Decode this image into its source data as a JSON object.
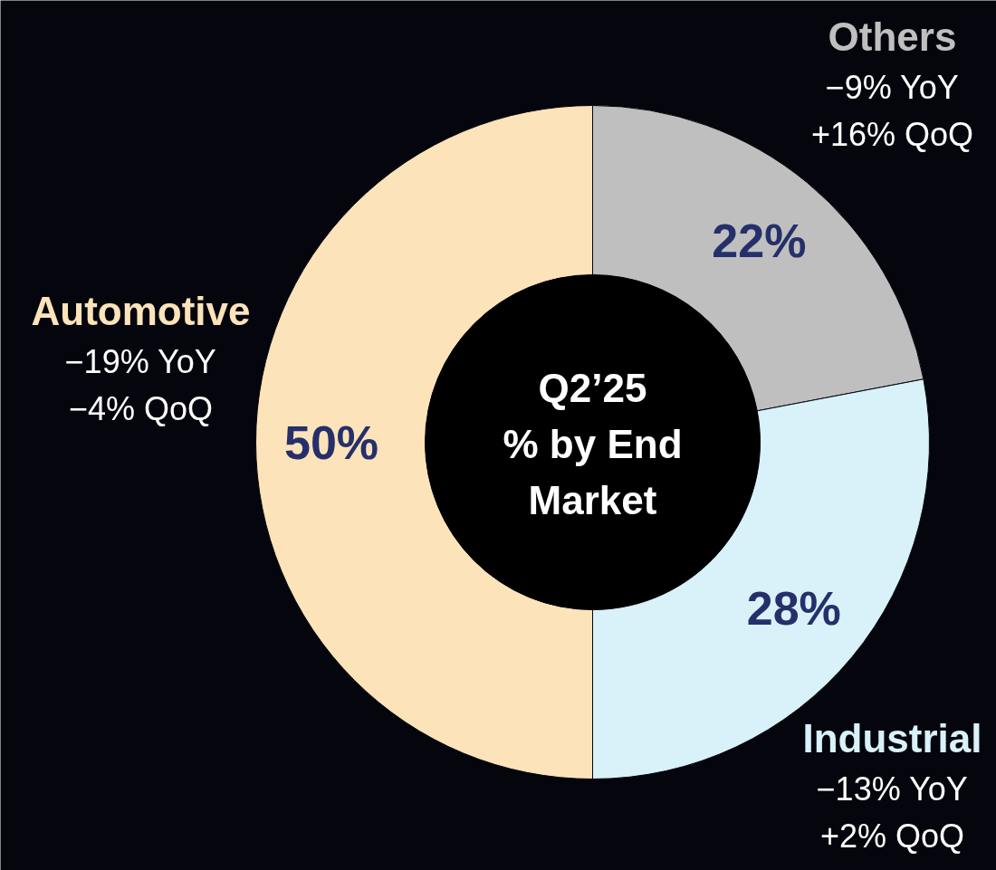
{
  "chart_data": {
    "type": "donut",
    "title": "Q2’25\n% by End\nMarket",
    "categories": [
      "Others",
      "Industrial",
      "Automotive"
    ],
    "values": [
      22,
      28,
      50
    ],
    "colors": [
      "#bfbfbf",
      "#d9f1f9",
      "#fde3b9"
    ],
    "value_labels": [
      "22%",
      "28%",
      "50%"
    ],
    "annotations": [
      "−9% YoY",
      "+16% QoQ",
      "−13% YoY",
      "+2% QoQ",
      "−19% YoY",
      "−4% QoQ"
    ]
  }
}
